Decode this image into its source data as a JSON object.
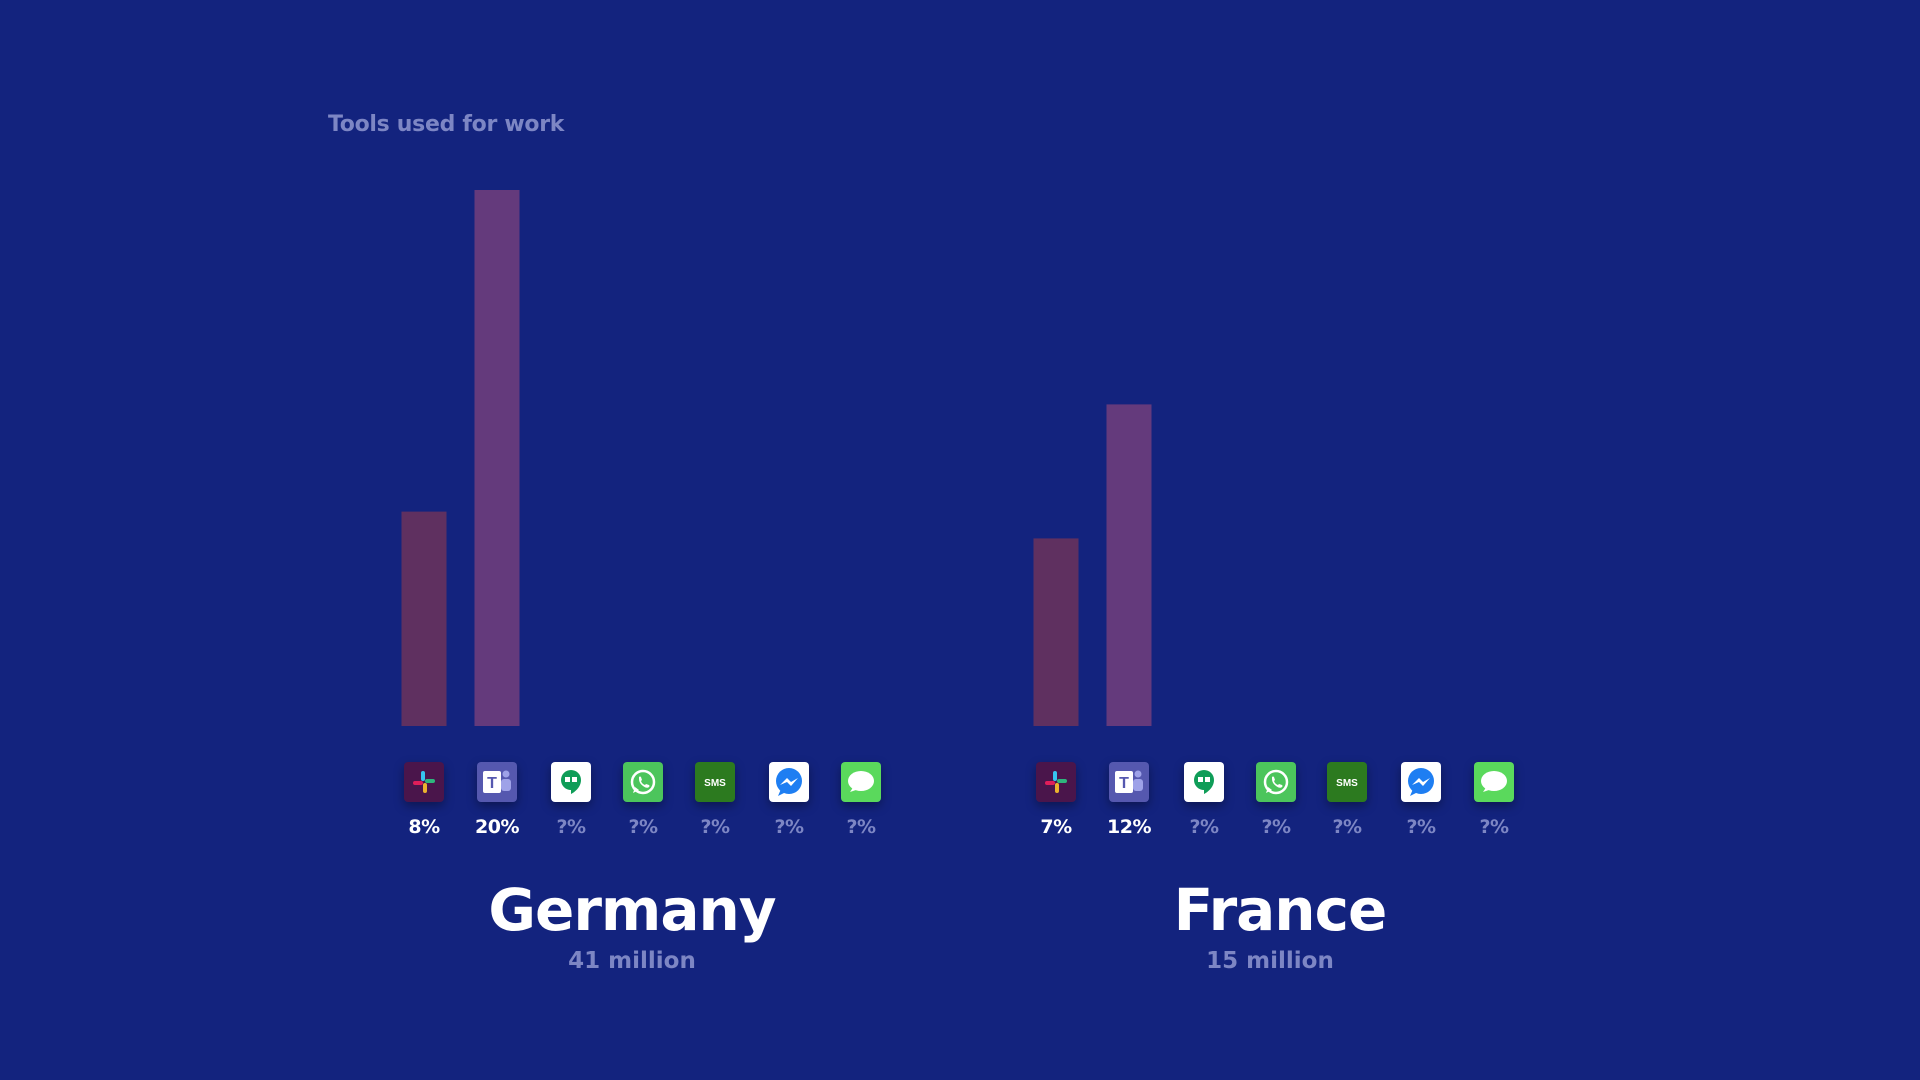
{
  "title": "Tools used for work",
  "colors": {
    "background": "#13237e",
    "slack_bar": "#5f3060",
    "teams_bar": "#643a7c",
    "muted_text": "#7d86c4"
  },
  "chart_data": [
    {
      "type": "bar",
      "country": "Germany",
      "population": "41 million",
      "categories": [
        "Slack",
        "Microsoft Teams",
        "Google Hangouts",
        "WhatsApp",
        "SMS",
        "Messenger",
        "Messages"
      ],
      "icons": [
        "slack-icon",
        "teams-icon",
        "hangouts-icon",
        "whatsapp-icon",
        "sms-icon",
        "messenger-icon",
        "messages-icon"
      ],
      "values": [
        8,
        20,
        null,
        null,
        null,
        null,
        null
      ],
      "labels": [
        "8%",
        "20%",
        "?%",
        "?%",
        "?%",
        "?%",
        "?%"
      ],
      "ylim": [
        0,
        20
      ]
    },
    {
      "type": "bar",
      "country": "France",
      "population": "15 million",
      "categories": [
        "Slack",
        "Microsoft Teams",
        "Google Hangouts",
        "WhatsApp",
        "SMS",
        "Messenger",
        "Messages"
      ],
      "icons": [
        "slack-icon",
        "teams-icon",
        "hangouts-icon",
        "whatsapp-icon",
        "sms-icon",
        "messenger-icon",
        "messages-icon"
      ],
      "values": [
        7,
        12,
        null,
        null,
        null,
        null,
        null
      ],
      "labels": [
        "7%",
        "12%",
        "?%",
        "?%",
        "?%",
        "?%",
        "?%"
      ],
      "ylim": [
        0,
        20
      ]
    }
  ]
}
